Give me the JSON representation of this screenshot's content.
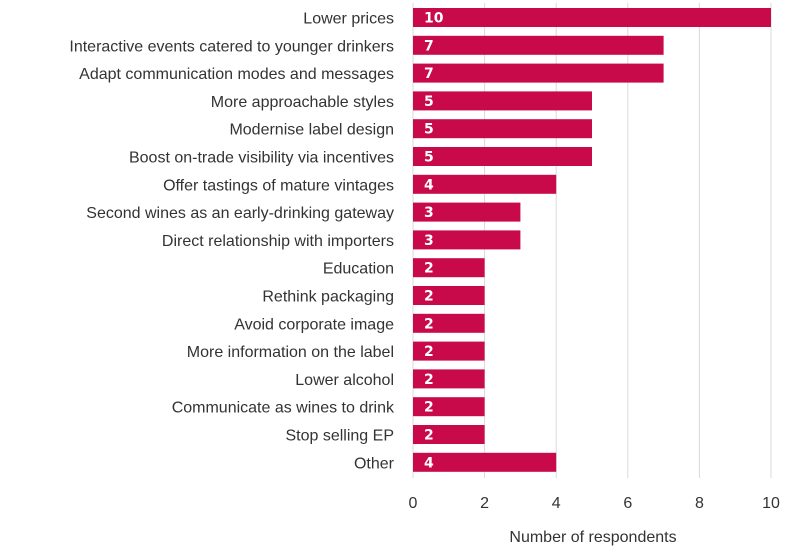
{
  "colors": {
    "bar": "#C8094A",
    "grid": "#d9d9d9",
    "text": "#333333",
    "value_text": "#ffffff"
  },
  "chart_data": {
    "type": "bar",
    "orientation": "horizontal",
    "title": "",
    "xlabel": "Number of respondents",
    "ylabel": "",
    "xlim": [
      0,
      10
    ],
    "xticks": [
      0,
      2,
      4,
      6,
      8,
      10
    ],
    "grid": true,
    "categories": [
      "Lower prices",
      "Interactive events catered to younger drinkers",
      "Adapt communication modes and messages",
      "More approachable styles",
      "Modernise label design",
      "Boost on-trade visibility via incentives",
      "Offer tastings of mature vintages",
      "Second wines as an early-drinking gateway",
      "Direct relationship with importers",
      "Education",
      "Rethink packaging",
      "Avoid corporate image",
      "More information on the label",
      "Lower alcohol",
      "Communicate as wines to drink",
      "Stop selling EP",
      "Other"
    ],
    "values": [
      10,
      7,
      7,
      5,
      5,
      5,
      4,
      3,
      3,
      2,
      2,
      2,
      2,
      2,
      2,
      2,
      4
    ]
  }
}
